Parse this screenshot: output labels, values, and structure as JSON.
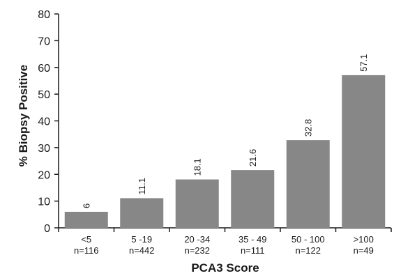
{
  "chart_data": {
    "type": "bar",
    "categories": [
      "<5",
      "5 -19",
      "20 -34",
      "35 - 49",
      "50 - 100",
      ">100"
    ],
    "category_counts": [
      "n=116",
      "n=442",
      "n=232",
      "n=111",
      "n=122",
      "n=49"
    ],
    "values": [
      6,
      11.1,
      18.1,
      21.6,
      32.8,
      57.1
    ],
    "data_labels": [
      "6",
      "11.1",
      "18.1",
      "21.6",
      "32.8",
      "57.1"
    ],
    "xlabel": "PCA3 Score",
    "ylabel": "% Biopsy Positive",
    "ylim": [
      0,
      80
    ],
    "yticks": [
      0,
      10,
      20,
      30,
      40,
      50,
      60,
      70,
      80
    ],
    "grid": false,
    "bar_color": "#878787",
    "axis_color": "#1a1a1a"
  }
}
